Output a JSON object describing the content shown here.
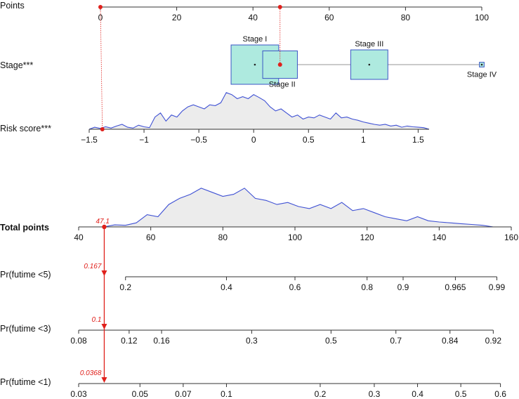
{
  "chart_data": {
    "type": "nomogram",
    "colors": {
      "axis": "#333333",
      "box_fill": "#aeeadf",
      "box_stroke": "#3a56c4",
      "density_fill": "#ececec",
      "density_stroke": "#3f51d4",
      "marker": "#e0201b",
      "connector": "#aaaaaa"
    },
    "points": {
      "label": "Points",
      "range": [
        0,
        100
      ],
      "ticks": [
        0,
        20,
        40,
        60,
        80,
        100
      ],
      "tick_labels": [
        "0",
        "20",
        "40",
        "60",
        "80",
        "100"
      ]
    },
    "stage": {
      "label": "Stage***",
      "categories": [
        {
          "name": "Stage I",
          "points": 40.5,
          "relative_size": 1.0
        },
        {
          "name": "Stage II",
          "points": 47.1,
          "relative_size": 0.7
        },
        {
          "name": "Stage III",
          "points": 70.5,
          "relative_size": 0.75
        },
        {
          "name": "Stage IV",
          "points": 100,
          "relative_size": 0.12
        }
      ],
      "selected": "Stage II",
      "selected_points": 47.1
    },
    "risk_score": {
      "label": "Risk score***",
      "range": [
        -1.5,
        1.6
      ],
      "ticks": [
        -1.5,
        -1,
        -0.5,
        0,
        0.5,
        1,
        1.5
      ],
      "tick_labels": [
        "−1.5",
        "−1",
        "−0.5",
        "0",
        "0.5",
        "1",
        "1.5"
      ],
      "selected_value": -1.38,
      "density_x": [
        -1.5,
        -1.45,
        -1.4,
        -1.35,
        -1.3,
        -1.25,
        -1.2,
        -1.15,
        -1.1,
        -1.05,
        -1.0,
        -0.95,
        -0.9,
        -0.85,
        -0.8,
        -0.75,
        -0.7,
        -0.65,
        -0.6,
        -0.55,
        -0.5,
        -0.45,
        -0.4,
        -0.35,
        -0.3,
        -0.25,
        -0.2,
        -0.15,
        -0.1,
        -0.05,
        0.0,
        0.05,
        0.1,
        0.15,
        0.2,
        0.25,
        0.3,
        0.35,
        0.4,
        0.45,
        0.5,
        0.55,
        0.6,
        0.65,
        0.7,
        0.75,
        0.8,
        0.85,
        0.9,
        0.95,
        1.0,
        1.05,
        1.1,
        1.15,
        1.2,
        1.25,
        1.3,
        1.35,
        1.4,
        1.45,
        1.5,
        1.55,
        1.6
      ],
      "density_y": [
        0.0,
        0.05,
        0.02,
        0.06,
        0.03,
        0.08,
        0.12,
        0.05,
        0.03,
        0.1,
        0.06,
        0.04,
        0.3,
        0.4,
        0.2,
        0.35,
        0.3,
        0.45,
        0.55,
        0.6,
        0.55,
        0.5,
        0.6,
        0.58,
        0.65,
        0.9,
        0.85,
        0.75,
        0.8,
        0.75,
        0.85,
        0.78,
        0.7,
        0.55,
        0.45,
        0.5,
        0.4,
        0.3,
        0.35,
        0.25,
        0.3,
        0.28,
        0.35,
        0.3,
        0.25,
        0.4,
        0.28,
        0.3,
        0.25,
        0.22,
        0.18,
        0.15,
        0.12,
        0.1,
        0.12,
        0.08,
        0.1,
        0.05,
        0.08,
        0.06,
        0.05,
        0.04,
        0.0
      ]
    },
    "total_points": {
      "label": "Total points",
      "range": [
        40,
        160
      ],
      "ticks": [
        40,
        60,
        80,
        100,
        120,
        140,
        160
      ],
      "tick_labels": [
        "40",
        "60",
        "80",
        "100",
        "120",
        "140",
        "160"
      ],
      "selected_value": 47.1,
      "selected_label": "47.1",
      "density_x": [
        47,
        50,
        53,
        56,
        59,
        62,
        65,
        68,
        71,
        74,
        77,
        80,
        83,
        86,
        89,
        92,
        95,
        98,
        101,
        104,
        107,
        110,
        113,
        116,
        119,
        122,
        125,
        128,
        131,
        134,
        137,
        140,
        143,
        146,
        149,
        152,
        155
      ],
      "density_y": [
        0.0,
        0.05,
        0.04,
        0.1,
        0.3,
        0.25,
        0.55,
        0.7,
        0.8,
        0.95,
        0.85,
        0.75,
        0.8,
        0.95,
        0.7,
        0.65,
        0.55,
        0.6,
        0.5,
        0.45,
        0.55,
        0.45,
        0.6,
        0.4,
        0.45,
        0.35,
        0.25,
        0.2,
        0.15,
        0.25,
        0.15,
        0.12,
        0.1,
        0.08,
        0.06,
        0.04,
        0.0
      ]
    },
    "pr5": {
      "label": "Pr(futime <5)",
      "ticks": [
        0.2,
        0.4,
        0.6,
        0.8,
        0.9,
        0.965,
        0.99
      ],
      "tick_labels": [
        "0.2",
        "0.4",
        "0.6",
        "0.8",
        "0.9",
        "0.965",
        "0.99"
      ],
      "tick_total_points": [
        53,
        81,
        100,
        120,
        130,
        144.5,
        156
      ],
      "selected_value": 0.167,
      "selected_label": "0.167"
    },
    "pr3": {
      "label": "Pr(futime <3)",
      "ticks": [
        0.08,
        0.12,
        0.16,
        0.3,
        0.5,
        0.7,
        0.84,
        0.92
      ],
      "tick_labels": [
        "0.08",
        "0.12",
        "0.16",
        "0.3",
        "0.5",
        "0.7",
        "0.84",
        "0.92"
      ],
      "tick_total_points": [
        40,
        54,
        63,
        88,
        110,
        128,
        143,
        155
      ],
      "selected_value": 0.1,
      "selected_label": "0.1"
    },
    "pr1": {
      "label": "Pr(futime <1)",
      "ticks": [
        0.03,
        0.05,
        0.07,
        0.1,
        0.2,
        0.3,
        0.4,
        0.5,
        0.6
      ],
      "tick_labels": [
        "0.03",
        "0.05",
        "0.07",
        "0.1",
        "0.2",
        "0.3",
        "0.4",
        "0.5",
        "0.6"
      ],
      "tick_total_points": [
        40,
        57,
        69,
        81,
        107,
        122,
        134,
        146,
        157
      ],
      "selected_value": 0.0368,
      "selected_label": "0.0368"
    }
  }
}
